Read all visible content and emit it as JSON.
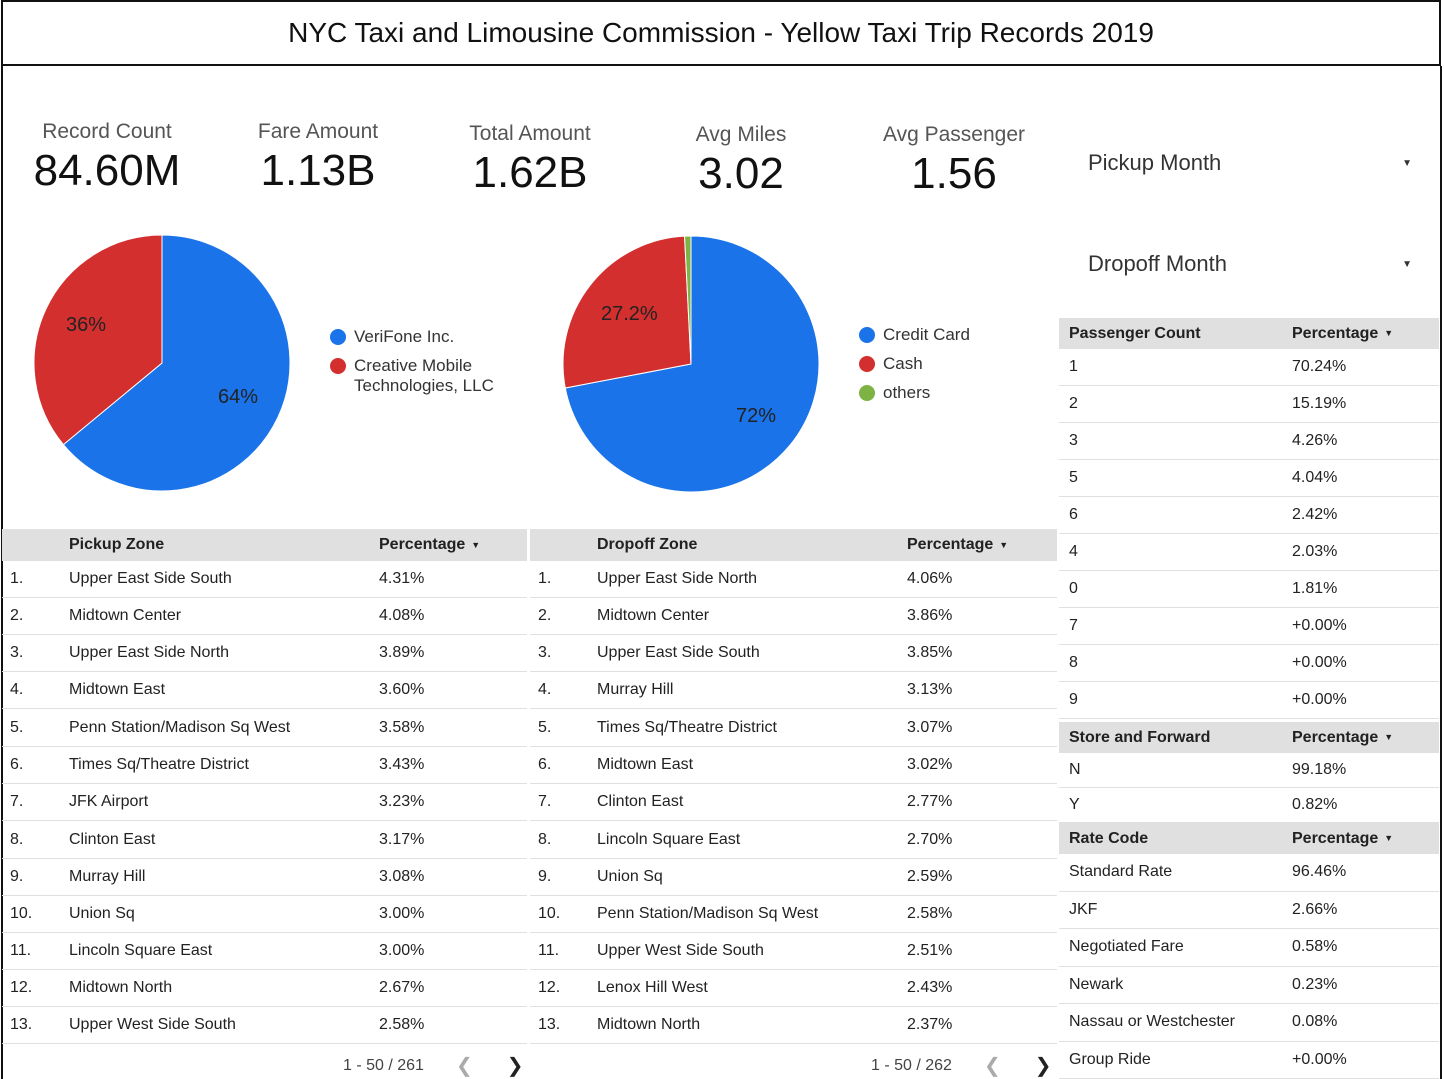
{
  "title": "NYC Taxi and Limousine Commission - Yellow Taxi Trip Records 2019",
  "kpis": [
    {
      "label": "Record Count",
      "value": "84.60M"
    },
    {
      "label": "Fare Amount",
      "value": "1.13B"
    },
    {
      "label": "Total Amount",
      "value": "1.62B"
    },
    {
      "label": "Avg Miles",
      "value": "3.02"
    },
    {
      "label": "Avg Passenger",
      "value": "1.56"
    }
  ],
  "filters": {
    "pickup": "Pickup Month",
    "dropoff": "Dropoff Month"
  },
  "chart_data": [
    {
      "type": "pie",
      "slices": [
        {
          "name": "VeriFone Inc.",
          "value": 64,
          "label": "64%",
          "color": "#1a73e8"
        },
        {
          "name": "Creative Mobile Technologies, LLC",
          "value": 36,
          "label": "36%",
          "color": "#d32f2f"
        }
      ]
    },
    {
      "type": "pie",
      "slices": [
        {
          "name": "Credit Card",
          "value": 72,
          "label": "72%",
          "color": "#1a73e8"
        },
        {
          "name": "Cash",
          "value": 27.2,
          "label": "27.2%",
          "color": "#d32f2f"
        },
        {
          "name": "others",
          "value": 0.8,
          "label": "",
          "color": "#7cb342"
        }
      ]
    }
  ],
  "legends": {
    "vendor": [
      {
        "line1": "VeriFone Inc.",
        "line2": "",
        "color": "#1a73e8"
      },
      {
        "line1": "Creative Mobile",
        "line2": "Technologies, LLC",
        "color": "#d32f2f"
      }
    ],
    "payment": [
      {
        "line1": "Credit Card",
        "line2": "",
        "color": "#1a73e8"
      },
      {
        "line1": "Cash",
        "line2": "",
        "color": "#d32f2f"
      },
      {
        "line1": "others",
        "line2": "",
        "color": "#7cb342"
      }
    ]
  },
  "pickup_table": {
    "col1": "Pickup Zone",
    "col2": "Percentage",
    "rows": [
      [
        "1.",
        "Upper East Side South",
        "4.31%"
      ],
      [
        "2.",
        "Midtown Center",
        "4.08%"
      ],
      [
        "3.",
        "Upper East Side North",
        "3.89%"
      ],
      [
        "4.",
        "Midtown East",
        "3.60%"
      ],
      [
        "5.",
        "Penn Station/Madison Sq West",
        "3.58%"
      ],
      [
        "6.",
        "Times Sq/Theatre District",
        "3.43%"
      ],
      [
        "7.",
        "JFK Airport",
        "3.23%"
      ],
      [
        "8.",
        "Clinton East",
        "3.17%"
      ],
      [
        "9.",
        "Murray Hill",
        "3.08%"
      ],
      [
        "10.",
        "Union Sq",
        "3.00%"
      ],
      [
        "11.",
        "Lincoln Square East",
        "3.00%"
      ],
      [
        "12.",
        "Midtown North",
        "2.67%"
      ],
      [
        "13.",
        "Upper West Side South",
        "2.58%"
      ]
    ],
    "pager": "1 - 50 / 261"
  },
  "dropoff_table": {
    "col1": "Dropoff Zone",
    "col2": "Percentage",
    "rows": [
      [
        "1.",
        "Upper East Side North",
        "4.06%"
      ],
      [
        "2.",
        "Midtown Center",
        "3.86%"
      ],
      [
        "3.",
        "Upper East Side South",
        "3.85%"
      ],
      [
        "4.",
        "Murray Hill",
        "3.13%"
      ],
      [
        "5.",
        "Times Sq/Theatre District",
        "3.07%"
      ],
      [
        "6.",
        "Midtown East",
        "3.02%"
      ],
      [
        "7.",
        "Clinton East",
        "2.77%"
      ],
      [
        "8.",
        "Lincoln Square East",
        "2.70%"
      ],
      [
        "9.",
        "Union Sq",
        "2.59%"
      ],
      [
        "10.",
        "Penn Station/Madison Sq West",
        "2.58%"
      ],
      [
        "11.",
        "Upper West Side South",
        "2.51%"
      ],
      [
        "12.",
        "Lenox Hill West",
        "2.43%"
      ],
      [
        "13.",
        "Midtown North",
        "2.37%"
      ]
    ],
    "pager": "1 - 50 / 262"
  },
  "passenger_table": {
    "col1": "Passenger Count",
    "col2": "Percentage",
    "rows": [
      [
        "1",
        "70.24%"
      ],
      [
        "2",
        "15.19%"
      ],
      [
        "3",
        "4.26%"
      ],
      [
        "5",
        "4.04%"
      ],
      [
        "6",
        "2.42%"
      ],
      [
        "4",
        "2.03%"
      ],
      [
        "0",
        "1.81%"
      ],
      [
        "7",
        "+0.00%"
      ],
      [
        "8",
        "+0.00%"
      ],
      [
        "9",
        "+0.00%"
      ]
    ]
  },
  "store_table": {
    "col1": "Store and Forward",
    "col2": "Percentage",
    "rows": [
      [
        "N",
        "99.18%"
      ],
      [
        "Y",
        "0.82%"
      ]
    ]
  },
  "rate_table": {
    "col1": "Rate Code",
    "col2": "Percentage",
    "rows": [
      [
        "Standard Rate",
        "96.46%"
      ],
      [
        "JKF",
        "2.66%"
      ],
      [
        "Negotiated Fare",
        "0.58%"
      ],
      [
        "Newark",
        "0.23%"
      ],
      [
        "Nassau or Westchester",
        "0.08%"
      ],
      [
        "Group Ride",
        "+0.00%"
      ]
    ]
  }
}
